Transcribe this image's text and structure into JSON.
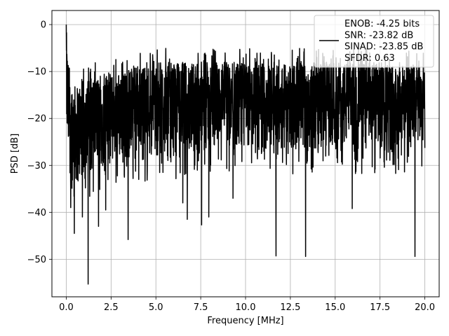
{
  "chart_data": {
    "type": "line",
    "xlabel": "Frequency [MHz]",
    "ylabel": "PSD [dB]",
    "xlim": [
      -0.8,
      20.8
    ],
    "ylim": [
      -58,
      3
    ],
    "grid": true,
    "x_ticks": [
      0,
      2.5,
      5,
      7.5,
      10,
      12.5,
      15,
      17.5,
      20
    ],
    "x_tick_labels": [
      "0.0",
      "2.5",
      "5.0",
      "7.5",
      "10.0",
      "12.5",
      "15.0",
      "17.5",
      "20.0"
    ],
    "y_ticks": [
      0,
      -10,
      -20,
      -30,
      -40,
      -50
    ],
    "y_tick_labels": [
      "0",
      "−10",
      "−20",
      "−30",
      "−40",
      "−50"
    ],
    "legend": {
      "placement": "upper right",
      "entries": [
        "ENOB: -4.25 bits",
        "SNR: -23.82 dB",
        "SINAD: -23.85 dB",
        "SFDR: 0.63"
      ]
    },
    "line_color": "#000000",
    "series": [
      {
        "x_range": [
          0,
          20
        ],
        "envelope": {
          "x": [
            0,
            0.02,
            0.05,
            0.1,
            0.2,
            0.4,
            0.6,
            0.8,
            1.0,
            1.5,
            2.0,
            3.0,
            4.0,
            5.0,
            6.0,
            7.0,
            8.0,
            10.0,
            12.0,
            14.0,
            16.0,
            18.0,
            20.0
          ],
          "upper": [
            0,
            -2,
            -5,
            -8,
            -11,
            -13,
            -13,
            -12,
            -12,
            -11,
            -11,
            -10,
            -9,
            -8,
            -8,
            -8,
            -8,
            -8,
            -8,
            -8,
            -8,
            -8,
            -9
          ],
          "floor": [
            -15,
            -25,
            -30,
            -32,
            -33,
            -34,
            -35,
            -35,
            -34,
            -32,
            -31,
            -30,
            -30,
            -29,
            -29,
            -28,
            -28,
            -28,
            -28,
            -28,
            -28,
            -28,
            -27
          ]
        },
        "dips": [
          {
            "x": 0.25,
            "y": -39
          },
          {
            "x": 0.45,
            "y": -44.5
          },
          {
            "x": 0.9,
            "y": -41
          },
          {
            "x": 1.22,
            "y": -55.3
          },
          {
            "x": 1.8,
            "y": -43
          },
          {
            "x": 2.2,
            "y": -39.5
          },
          {
            "x": 3.45,
            "y": -45.8
          },
          {
            "x": 6.5,
            "y": -38
          },
          {
            "x": 6.75,
            "y": -41.5
          },
          {
            "x": 7.55,
            "y": -42.7
          },
          {
            "x": 7.95,
            "y": -41
          },
          {
            "x": 9.3,
            "y": -37
          },
          {
            "x": 11.7,
            "y": -49.3
          },
          {
            "x": 13.35,
            "y": -49.4
          },
          {
            "x": 15.95,
            "y": -39.2
          },
          {
            "x": 19.45,
            "y": -49.4
          }
        ]
      }
    ]
  }
}
